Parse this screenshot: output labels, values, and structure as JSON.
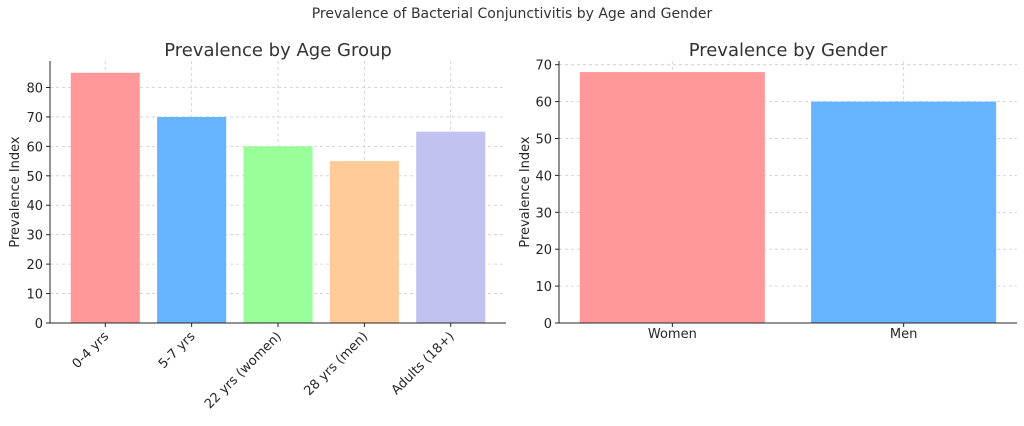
{
  "figure": {
    "title": "Prevalence of Bacterial Conjunctivitis by Age and Gender"
  },
  "chart_data": [
    {
      "type": "bar",
      "title": "Prevalence by Age Group",
      "xlabel": "",
      "ylabel": "Prevalence Index",
      "categories": [
        "0-4 yrs",
        "5-7 yrs",
        "22 yrs (women)",
        "28 yrs (men)",
        "Adults (18+)"
      ],
      "values": [
        85,
        70,
        60,
        55,
        65
      ],
      "colors": [
        "#ff9999",
        "#66b3ff",
        "#99ff99",
        "#ffcc99",
        "#c2c2f0"
      ],
      "ylim": [
        0,
        89
      ],
      "yticks": [
        0,
        10,
        20,
        30,
        40,
        50,
        60,
        70,
        80
      ],
      "grid": true,
      "xtick_rotation": 45
    },
    {
      "type": "bar",
      "title": "Prevalence by Gender",
      "xlabel": "",
      "ylabel": "Prevalence Index",
      "categories": [
        "Women",
        "Men"
      ],
      "values": [
        68,
        60
      ],
      "colors": [
        "#ff9999",
        "#66b3ff"
      ],
      "ylim": [
        0,
        71
      ],
      "yticks": [
        0,
        10,
        20,
        30,
        40,
        50,
        60,
        70
      ],
      "grid": true,
      "xtick_rotation": 0
    }
  ]
}
